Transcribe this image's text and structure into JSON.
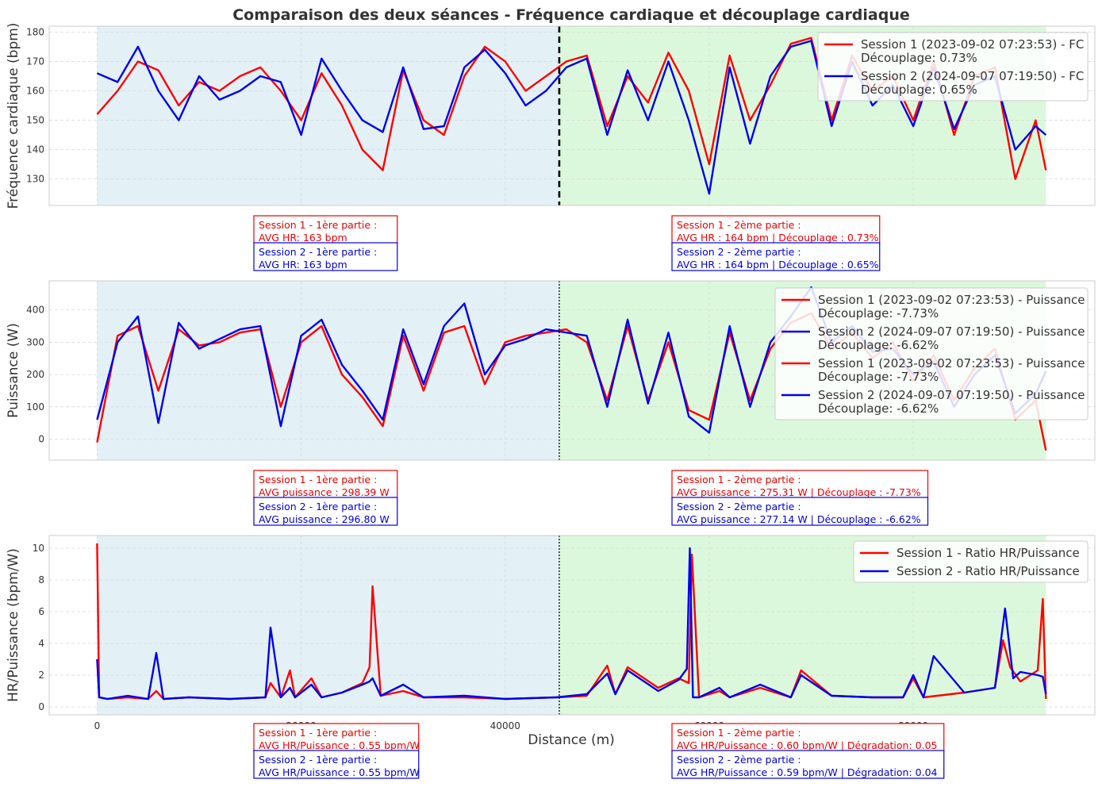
{
  "figure": {
    "title": "Comparaison des deux séances - Fréquence cardiaque et découplage cardiaque",
    "xlabel": "Distance (m)"
  },
  "colors": {
    "session1": "#ff0000",
    "session2": "#0000ee",
    "first_half_bg": "#e3f1f7",
    "second_half_bg": "#dcf8dc"
  },
  "chart_data": [
    {
      "type": "line",
      "name": "hr",
      "ylabel": "Fréquence cardiaque (bpm)",
      "xlim": [
        -4700,
        97800
      ],
      "ylim": [
        121,
        182
      ],
      "xticks": [
        0,
        20000,
        40000,
        60000,
        80000
      ],
      "yticks": [
        130,
        140,
        150,
        160,
        170,
        180
      ],
      "split_x": 45300,
      "split_style": "dashed",
      "x_end": 93000,
      "grid": true,
      "legend_position": "upper-right",
      "series": [
        {
          "name": "Session 1 (2023-09-02 07:23:53) - FC\nDécouplage: 0.73%",
          "color": "#ff0000",
          "x": [
            0,
            2000,
            4000,
            6000,
            8000,
            10000,
            12000,
            14000,
            16000,
            18000,
            20000,
            22000,
            24000,
            26000,
            28000,
            30000,
            32000,
            34000,
            36000,
            38000,
            40000,
            42000,
            44000,
            46000,
            48000,
            50000,
            52000,
            54000,
            56000,
            58000,
            60000,
            62000,
            64000,
            66000,
            68000,
            70000,
            72000,
            74000,
            76000,
            78000,
            80000,
            82000,
            84000,
            86000,
            88000,
            90000,
            92000,
            93000
          ],
          "values": [
            152,
            160,
            170,
            167,
            155,
            163,
            160,
            165,
            168,
            160,
            150,
            166,
            155,
            140,
            133,
            167,
            150,
            145,
            165,
            175,
            170,
            160,
            165,
            170,
            172,
            148,
            165,
            156,
            173,
            160,
            135,
            172,
            150,
            162,
            176,
            178,
            150,
            172,
            160,
            165,
            150,
            170,
            145,
            165,
            168,
            130,
            150,
            133
          ]
        },
        {
          "name": "Session 2 (2024-09-07 07:19:50) - FC\nDécouplage: 0.65%",
          "color": "#0000ee",
          "x": [
            0,
            2000,
            4000,
            6000,
            8000,
            10000,
            12000,
            14000,
            16000,
            18000,
            20000,
            22000,
            24000,
            26000,
            28000,
            30000,
            32000,
            34000,
            36000,
            38000,
            40000,
            42000,
            44000,
            46000,
            48000,
            50000,
            52000,
            54000,
            56000,
            58000,
            60000,
            62000,
            64000,
            66000,
            68000,
            70000,
            72000,
            74000,
            76000,
            78000,
            80000,
            82000,
            84000,
            86000,
            88000,
            90000,
            92000,
            93000
          ],
          "values": [
            166,
            163,
            175,
            160,
            150,
            165,
            157,
            160,
            165,
            163,
            145,
            171,
            160,
            150,
            146,
            168,
            147,
            148,
            168,
            174,
            166,
            155,
            160,
            168,
            171,
            145,
            167,
            150,
            170,
            150,
            125,
            168,
            142,
            165,
            175,
            177,
            148,
            170,
            155,
            162,
            148,
            168,
            147,
            162,
            165,
            140,
            148,
            145
          ]
        }
      ]
    },
    {
      "type": "line",
      "name": "power",
      "ylabel": "Puissance (W)",
      "xlim": [
        -4700,
        97800
      ],
      "ylim": [
        -65,
        490
      ],
      "xticks": [
        0,
        20000,
        40000,
        60000,
        80000
      ],
      "yticks": [
        0,
        100,
        200,
        300,
        400
      ],
      "split_x": 45300,
      "split_style": "dotted",
      "x_end": 93000,
      "grid": true,
      "legend_position": "upper-right",
      "series": [
        {
          "name": "Session 1 (2023-09-02 07:23:53) - Puissance\nDécouplage: -7.73%",
          "color": "#ff0000",
          "x": [
            0,
            2000,
            4000,
            6000,
            8000,
            10000,
            12000,
            14000,
            16000,
            18000,
            20000,
            22000,
            24000,
            26000,
            28000,
            30000,
            32000,
            34000,
            36000,
            38000,
            40000,
            42000,
            44000,
            46000,
            48000,
            50000,
            52000,
            54000,
            56000,
            58000,
            60000,
            62000,
            64000,
            66000,
            68000,
            70000,
            72000,
            74000,
            76000,
            78000,
            80000,
            82000,
            84000,
            86000,
            88000,
            90000,
            92000,
            93000
          ],
          "values": [
            -10,
            320,
            350,
            150,
            340,
            290,
            300,
            330,
            340,
            100,
            300,
            350,
            200,
            130,
            40,
            320,
            150,
            330,
            350,
            170,
            300,
            320,
            330,
            340,
            300,
            120,
            350,
            120,
            300,
            90,
            60,
            330,
            120,
            280,
            360,
            390,
            280,
            330,
            250,
            300,
            180,
            260,
            120,
            220,
            280,
            60,
            120,
            -35
          ]
        },
        {
          "name": "Session 2 (2024-09-07 07:19:50) - Puissance\nDécouplage: -6.62%",
          "color": "#0000ee",
          "x": [
            0,
            2000,
            4000,
            6000,
            8000,
            10000,
            12000,
            14000,
            16000,
            18000,
            20000,
            22000,
            24000,
            26000,
            28000,
            30000,
            32000,
            34000,
            36000,
            38000,
            40000,
            42000,
            44000,
            46000,
            48000,
            50000,
            52000,
            54000,
            56000,
            58000,
            60000,
            62000,
            64000,
            66000,
            68000,
            70000,
            72000,
            74000,
            76000,
            78000,
            80000,
            82000,
            84000,
            86000,
            88000,
            90000,
            92000,
            93000
          ],
          "values": [
            60,
            300,
            380,
            50,
            360,
            280,
            310,
            340,
            350,
            40,
            320,
            370,
            230,
            150,
            60,
            340,
            170,
            350,
            420,
            200,
            290,
            310,
            340,
            330,
            320,
            100,
            370,
            110,
            330,
            70,
            20,
            350,
            100,
            300,
            380,
            470,
            300,
            350,
            270,
            280,
            200,
            240,
            100,
            200,
            260,
            80,
            140,
            210
          ]
        },
        {
          "name": "Session 1 (2023-09-02 07:23:53) - Puissance\nDécouplage: -7.73%",
          "color": "#ff0000",
          "duplicate_of": 0
        },
        {
          "name": "Session 2 (2024-09-07 07:19:50) - Puissance\nDécouplage: -6.62%",
          "color": "#0000ee",
          "duplicate_of": 1
        }
      ]
    },
    {
      "type": "line",
      "name": "ratio",
      "ylabel": "HR/Puissance (bpm/W)",
      "xlim": [
        -4700,
        97800
      ],
      "ylim": [
        -0.5,
        10.8
      ],
      "xticks": [
        0,
        20000,
        40000,
        60000,
        80000
      ],
      "xtick_labels": [
        "0",
        "20000",
        "40000",
        "60000",
        "80000"
      ],
      "yticks": [
        0,
        2,
        4,
        6,
        8,
        10
      ],
      "split_x": 45300,
      "split_style": "dotted",
      "x_end": 93000,
      "grid": true,
      "legend_position": "upper-right",
      "series": [
        {
          "name": "Session 1 - Ratio HR/Puissance",
          "color": "#ff0000",
          "x": [
            0,
            200,
            1000,
            3000,
            5000,
            5800,
            6500,
            9000,
            13000,
            16500,
            17000,
            18000,
            18900,
            19400,
            21000,
            22000,
            24000,
            26000,
            26700,
            27000,
            27800,
            30000,
            32000,
            36000,
            40000,
            45000,
            48000,
            50000,
            50800,
            52000,
            55000,
            57000,
            58000,
            58300,
            59000,
            61000,
            62000,
            65000,
            68000,
            69000,
            72000,
            76000,
            79000,
            80000,
            81000,
            85000,
            88000,
            88800,
            89500,
            90500,
            92200,
            92700,
            93000
          ],
          "values": [
            10.3,
            0.6,
            0.5,
            0.6,
            0.5,
            1.0,
            0.5,
            0.6,
            0.5,
            0.6,
            1.5,
            0.6,
            2.3,
            0.6,
            1.8,
            0.6,
            0.9,
            1.5,
            2.5,
            7.6,
            0.7,
            1.0,
            0.6,
            0.6,
            0.5,
            0.6,
            0.7,
            2.6,
            0.8,
            2.5,
            1.2,
            1.8,
            1.5,
            9.6,
            0.6,
            1.0,
            0.6,
            1.2,
            0.6,
            2.3,
            0.7,
            0.6,
            0.6,
            1.8,
            0.6,
            0.9,
            1.2,
            4.2,
            2.5,
            1.6,
            2.3,
            6.8,
            0.5
          ]
        },
        {
          "name": "Session 2 - Ratio HR/Puissance",
          "color": "#0000ee",
          "x": [
            0,
            200,
            1000,
            3000,
            5000,
            5800,
            6500,
            9000,
            13000,
            16500,
            17000,
            18000,
            18900,
            19400,
            21000,
            22000,
            24000,
            26000,
            26700,
            27000,
            27800,
            30000,
            32000,
            36000,
            40000,
            45000,
            48000,
            50000,
            50800,
            52000,
            55000,
            57000,
            57800,
            58100,
            58400,
            59000,
            61000,
            62000,
            65000,
            68000,
            69000,
            72000,
            76000,
            79000,
            80000,
            81000,
            82000,
            85000,
            88000,
            89000,
            89800,
            90500,
            92200,
            92700,
            93000
          ],
          "values": [
            3.0,
            0.6,
            0.5,
            0.7,
            0.5,
            3.4,
            0.5,
            0.6,
            0.5,
            0.6,
            5.0,
            0.6,
            1.2,
            0.6,
            1.4,
            0.6,
            0.9,
            1.4,
            1.6,
            1.8,
            0.7,
            1.4,
            0.6,
            0.7,
            0.5,
            0.6,
            0.8,
            2.1,
            0.8,
            2.3,
            1.0,
            1.7,
            2.4,
            10.0,
            0.6,
            0.6,
            1.2,
            0.6,
            1.4,
            0.6,
            2.0,
            0.7,
            0.6,
            0.6,
            2.0,
            0.6,
            3.2,
            0.9,
            1.2,
            6.2,
            1.8,
            2.2,
            2.0,
            1.9,
            0.8
          ]
        }
      ]
    }
  ],
  "annotations": {
    "hr": {
      "s1_first": [
        "Session 1 - 1ère partie :",
        "AVG HR: 163 bpm"
      ],
      "s2_first": [
        "Session 2 - 1ère partie :",
        "AVG HR: 163 bpm"
      ],
      "s1_second": [
        "Session 1 - 2ème partie :",
        "AVG HR : 164 bpm | Découplage : 0.73%"
      ],
      "s2_second": [
        "Session 2 - 2ème partie :",
        "AVG HR : 164 bpm | Découplage : 0.65%"
      ]
    },
    "power": {
      "s1_first": [
        "Session 1 - 1ère partie :",
        "AVG puissance : 298.39 W"
      ],
      "s2_first": [
        "Session 2 - 1ère partie :",
        "AVG puissance : 296.80 W"
      ],
      "s1_second": [
        "Session 1 - 2ème partie :",
        "AVG puissance : 275.31 W | Découplage : -7.73%"
      ],
      "s2_second": [
        "Session 2 - 2ème partie :",
        "AVG puissance : 277.14 W | Découplage : -6.62%"
      ]
    },
    "ratio": {
      "s1_first": [
        "Session 1 - 1ère partie :",
        "AVG HR/Puissance : 0.55 bpm/W"
      ],
      "s2_first": [
        "Session 2 - 1ère partie :",
        "AVG HR/Puissance : 0.55 bpm/W"
      ],
      "s1_second": [
        "Session 1 - 2ème partie :",
        "AVG HR/Puissance : 0.60 bpm/W | Dégradation: 0.05"
      ],
      "s2_second": [
        "Session 2 - 2ème partie :",
        "AVG HR/Puissance : 0.59 bpm/W | Dégradation: 0.04"
      ]
    }
  }
}
